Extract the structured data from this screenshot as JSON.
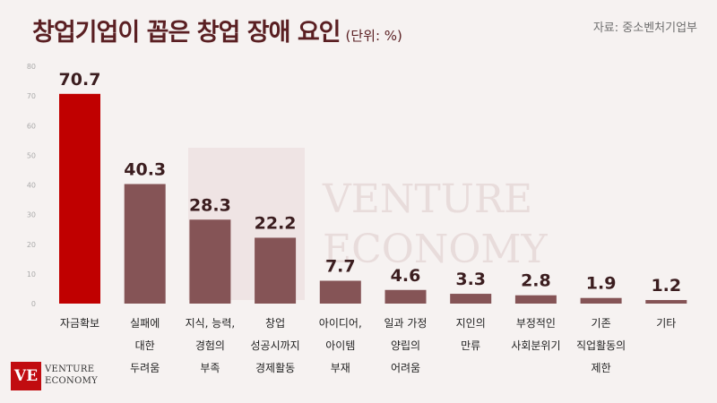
{
  "header": {
    "title": "창업기업이 꼽은 창업 장애 요인",
    "unit": "(단위: %)",
    "source": "자료: 중소벤처기업부"
  },
  "watermark": {
    "line1": "VENTURE",
    "line2": "ECONOMY"
  },
  "logo": {
    "mark": "VE",
    "line1": "VENTURE",
    "line2": "ECONOMY"
  },
  "colors": {
    "highlight": "#c00000",
    "bar": "#855456",
    "title": "#5a1f22"
  },
  "chart_data": {
    "type": "bar",
    "title": "창업기업이 꼽은 창업 장애 요인",
    "ylim": [
      0,
      80
    ],
    "yticks": [
      0,
      10,
      20,
      30,
      40,
      50,
      60,
      70,
      80
    ],
    "categories": [
      [
        "자금확보"
      ],
      [
        "실패에",
        "대한",
        "두려움"
      ],
      [
        "지식, 능력,",
        "경험의",
        "부족"
      ],
      [
        "창업",
        "성공시까지",
        "경제활동"
      ],
      [
        "아이디어,",
        "아이템",
        "부재"
      ],
      [
        "일과 가정",
        "양립의",
        "어려움"
      ],
      [
        "지인의",
        "만류"
      ],
      [
        "부정적인",
        "사회분위기"
      ],
      [
        "기존",
        "직업활동의",
        "제한"
      ],
      [
        "기타"
      ]
    ],
    "values": [
      70.7,
      40.3,
      28.3,
      22.2,
      7.7,
      4.6,
      3.3,
      2.8,
      1.9,
      1.2
    ],
    "value_labels": [
      "70.7",
      "40.3",
      "28.3",
      "22.2",
      "7.7",
      "4.6",
      "3.3",
      "2.8",
      "1.9",
      "1.2"
    ],
    "highlight_index": 0,
    "grid": false
  }
}
